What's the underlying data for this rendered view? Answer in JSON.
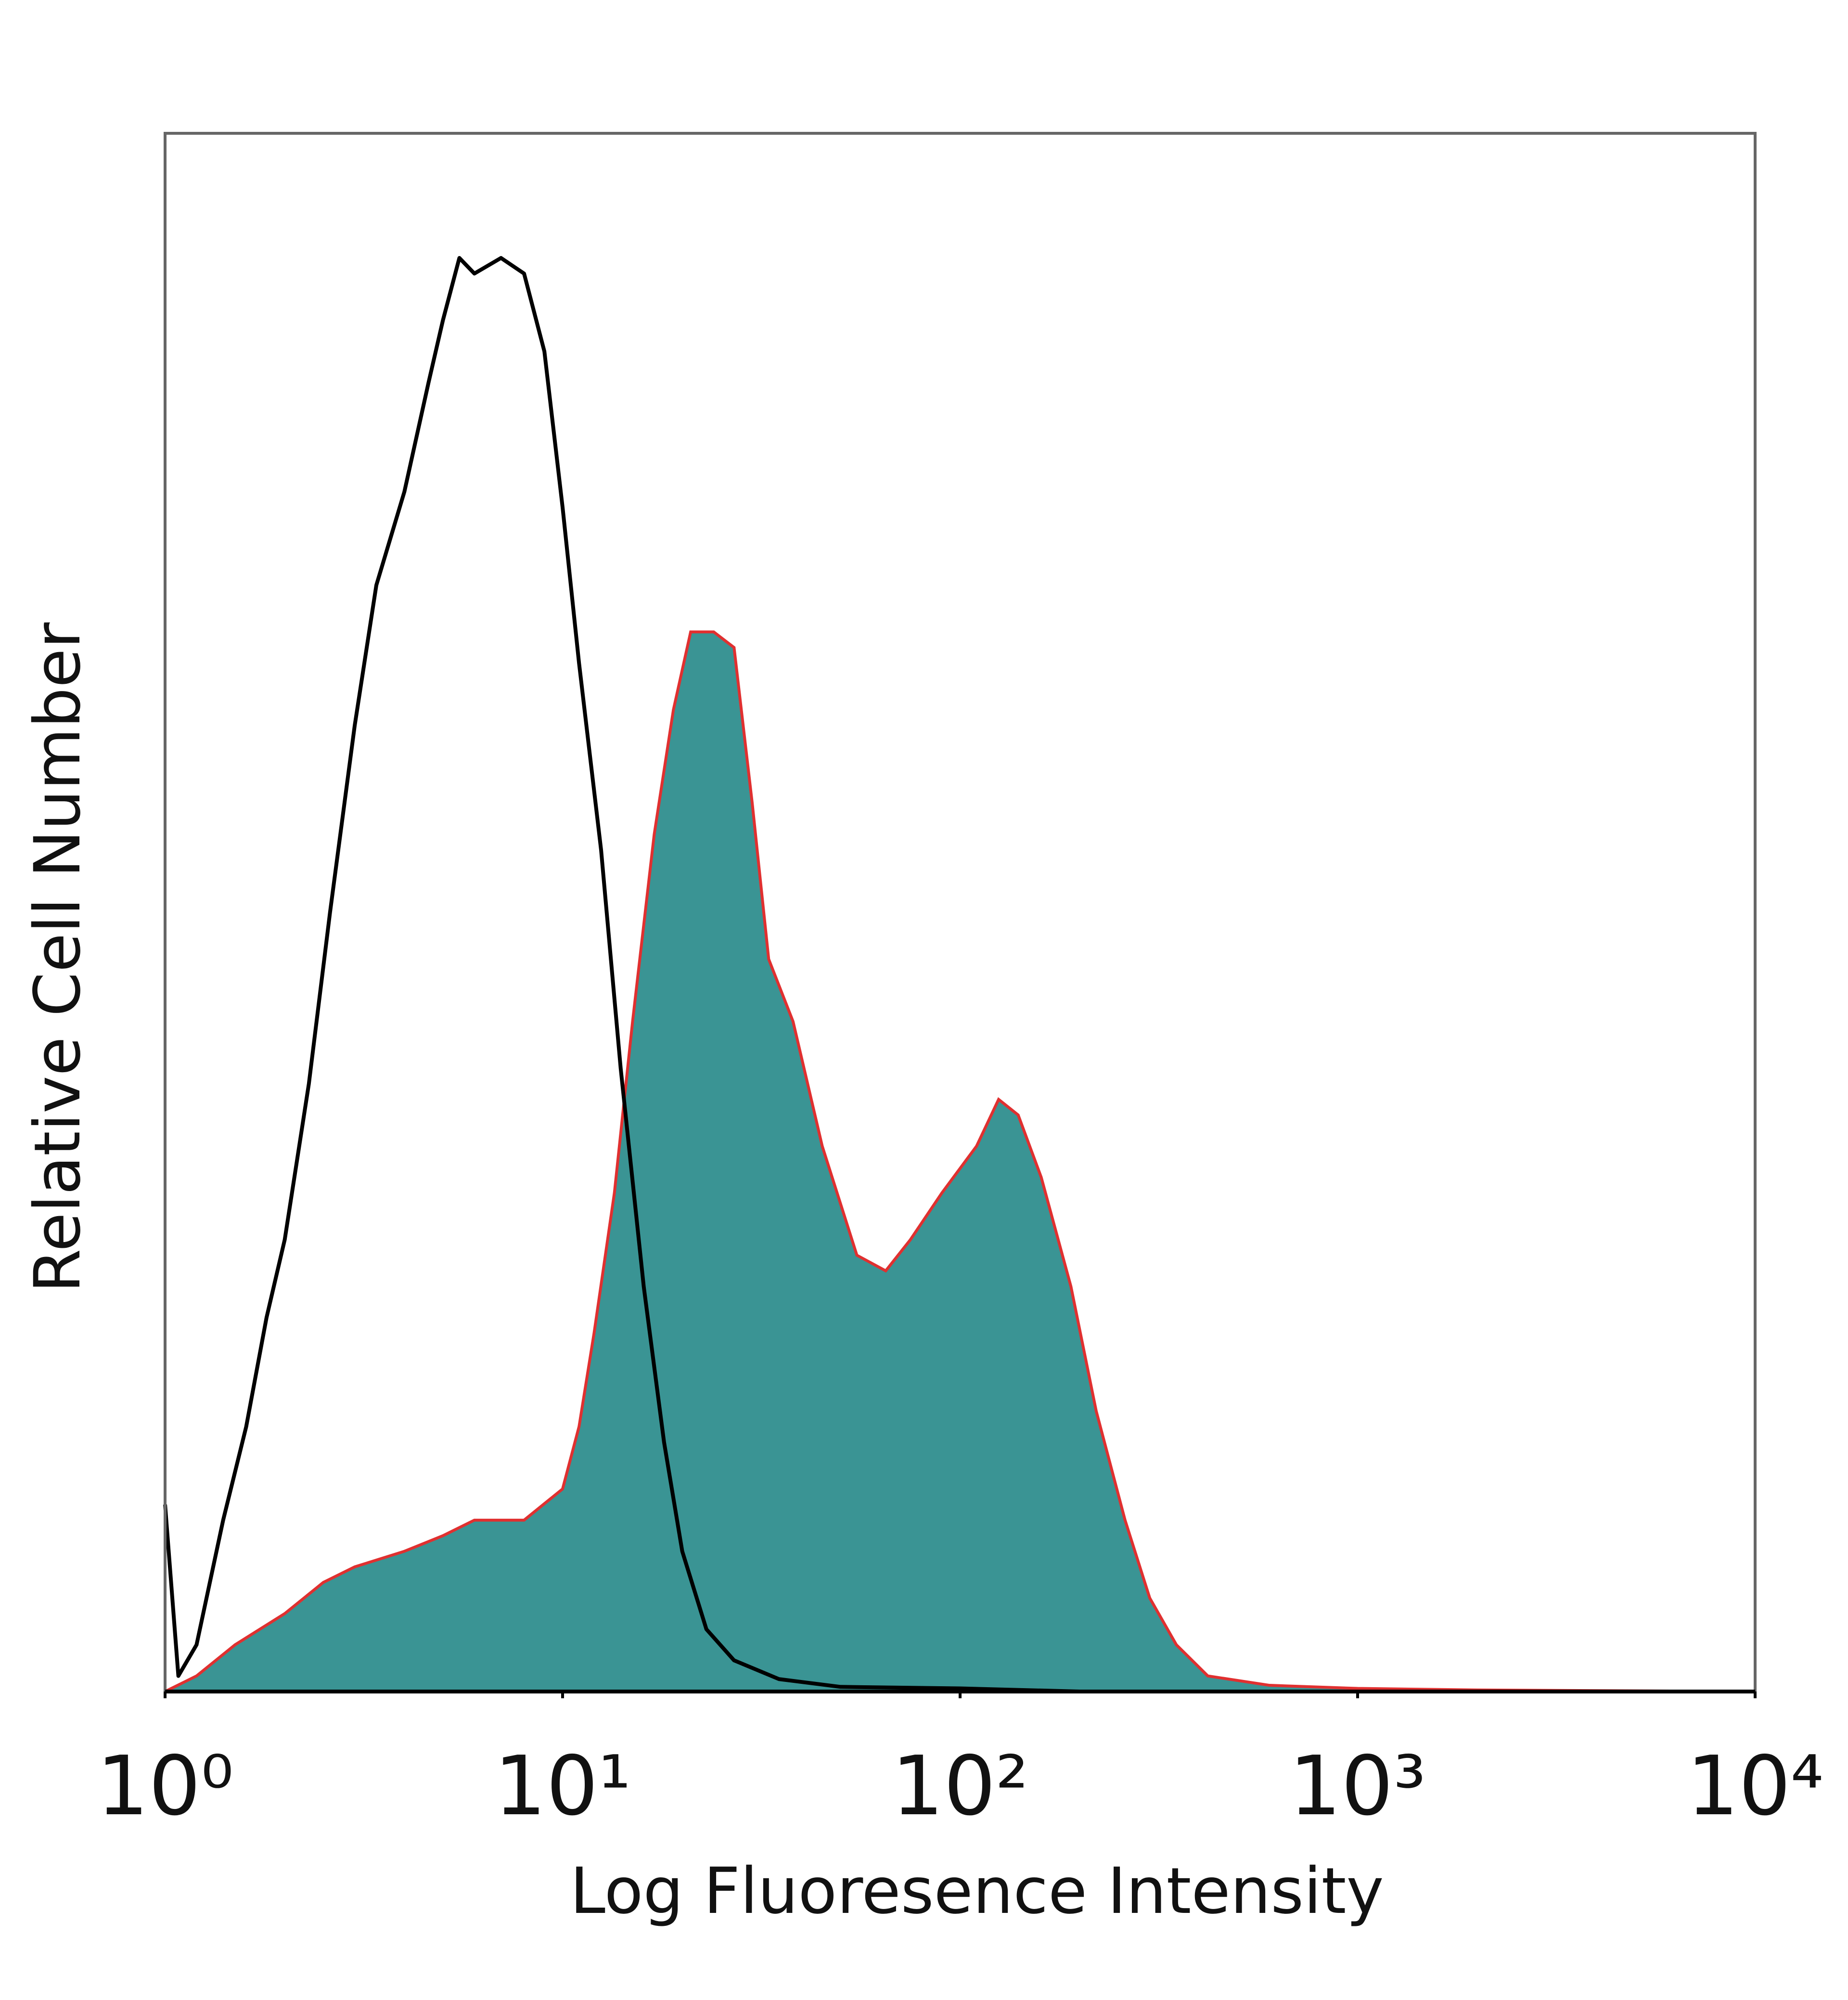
{
  "chart_data": {
    "type": "histogram-overlay",
    "xlabel": "Log Fluoresence Intensity",
    "ylabel": "Relative Cell Number",
    "xscale": "log",
    "xlim": [
      1,
      10000
    ],
    "xticks": [
      {
        "value": 1,
        "label": "10⁰"
      },
      {
        "value": 10,
        "label": "10¹"
      },
      {
        "value": 100,
        "label": "10²"
      },
      {
        "value": 1000,
        "label": "10³"
      },
      {
        "value": 10000,
        "label": "10⁴"
      }
    ],
    "ylim": [
      0,
      100
    ],
    "grid": false,
    "series": [
      {
        "style": "filled",
        "color": "#3a9494",
        "edge_color": "#e03030",
        "x": [
          1,
          1.2,
          1.5,
          2,
          2.5,
          3,
          4,
          5,
          6,
          8,
          10,
          11,
          12,
          13.5,
          15,
          17,
          19,
          21,
          24,
          27,
          30,
          33,
          38,
          45,
          55,
          65,
          75,
          90,
          110,
          125,
          140,
          160,
          190,
          220,
          260,
          300,
          350,
          420,
          600,
          1000,
          2000,
          10000
        ],
        "values": [
          0,
          1,
          3,
          5,
          7,
          8,
          9,
          10,
          11,
          11,
          13,
          17,
          23,
          32,
          43,
          55,
          63,
          68,
          68,
          67,
          57,
          47,
          43,
          35,
          28,
          27,
          29,
          32,
          35,
          38,
          37,
          33,
          26,
          18,
          11,
          6,
          3,
          1,
          0.4,
          0.2,
          0.1,
          0
        ]
      },
      {
        "style": "line",
        "color": "#000000",
        "x": [
          1,
          1.08,
          1.2,
          1.4,
          1.6,
          1.8,
          2,
          2.3,
          2.6,
          3,
          3.4,
          4,
          4.6,
          5,
          5.5,
          6,
          7,
          8,
          9,
          10,
          11,
          12.5,
          14,
          16,
          18,
          20,
          23,
          27,
          35,
          50,
          100,
          200,
          10000
        ],
        "values": [
          12,
          1,
          3,
          11,
          17,
          24,
          29,
          39,
          50,
          62,
          71,
          77,
          84,
          88,
          92,
          91,
          92,
          91,
          86,
          76,
          66,
          54,
          40,
          26,
          16,
          9,
          4,
          2,
          0.8,
          0.3,
          0.2,
          0,
          0
        ]
      }
    ]
  }
}
